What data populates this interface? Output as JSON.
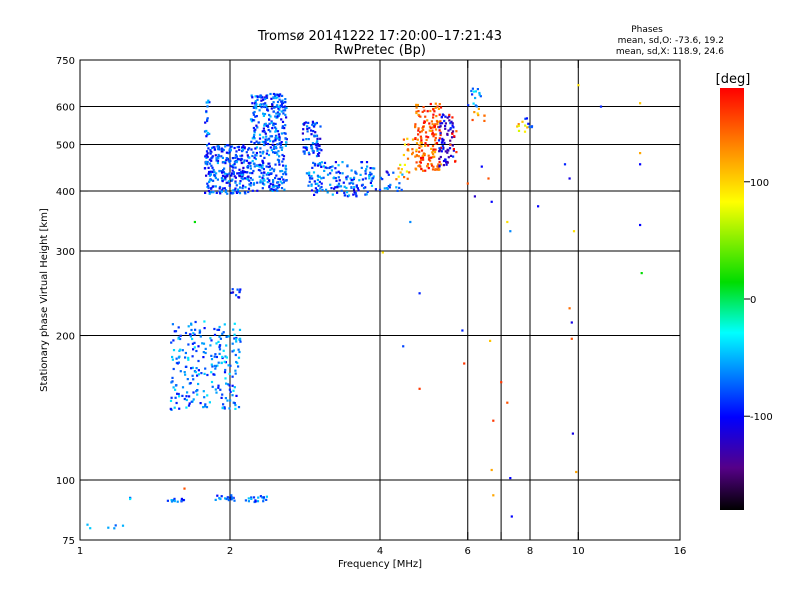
{
  "chart_data": {
    "type": "scatter",
    "title": "Tromsø 20141222 17:20:00–17:21:43",
    "subtitle": "RwPretec (Bp)",
    "xlabel": "Frequency [MHz]",
    "ylabel": "Stationary phase Virtual Height [km]",
    "x_scale": "log2",
    "y_scale": "log",
    "xlim": [
      1,
      16
    ],
    "ylim": [
      75,
      750
    ],
    "x_ticks": [
      1,
      2,
      4,
      6,
      8,
      10,
      16
    ],
    "x_minor_ticks": [
      7
    ],
    "y_ticks": [
      75,
      100,
      200,
      300,
      400,
      500,
      600,
      750
    ],
    "x_gridlines": [
      2,
      4,
      6,
      7,
      8,
      10
    ],
    "y_gridlines": [
      100,
      200,
      300,
      400,
      500,
      600
    ],
    "grid": true,
    "legend_position": "top-right",
    "phase_header": "Phases",
    "phase_stats": [
      "mean, sd,O: -73.6, 19.2",
      "mean, sd,X: 118.9, 24.6"
    ],
    "colorbar": {
      "label": "[deg]",
      "range": [
        -180,
        180
      ],
      "ticks": [
        100,
        0,
        -100
      ],
      "colors": [
        "#ff0000",
        "#ff8800",
        "#ffff00",
        "#00dd00",
        "#00ffff",
        "#0000ff",
        "#550088",
        "#000000"
      ]
    },
    "series": [
      {
        "n": 6,
        "x": [
          1.0,
          1.22
        ],
        "y": [
          79,
          81
        ],
        "phase": -60
      },
      {
        "n": 3,
        "x": [
          1.26,
          1.26
        ],
        "y": [
          91,
          92
        ],
        "phase": -60
      },
      {
        "n": 14,
        "x": [
          1.5,
          1.62
        ],
        "y": [
          90,
          92
        ],
        "phase": -70
      },
      {
        "n": 16,
        "x": [
          1.87,
          2.05
        ],
        "y": [
          90,
          93
        ],
        "phase": -70
      },
      {
        "n": 18,
        "x": [
          2.15,
          2.42
        ],
        "y": [
          90,
          93
        ],
        "phase": -75
      },
      {
        "n": 240,
        "x": [
          1.52,
          2.1
        ],
        "y": [
          140,
          215
        ],
        "phase": -65
      },
      {
        "n": 10,
        "x": [
          2.0,
          2.1
        ],
        "y": [
          240,
          250
        ],
        "phase": -100
      },
      {
        "n": 280,
        "x": [
          1.78,
          2.2
        ],
        "y": [
          395,
          500
        ],
        "phase": -80
      },
      {
        "n": 18,
        "x": [
          1.78,
          1.82
        ],
        "y": [
          500,
          620
        ],
        "phase": -70
      },
      {
        "n": 380,
        "x": [
          2.2,
          2.6
        ],
        "y": [
          400,
          640
        ],
        "phase": -75
      },
      {
        "n": 70,
        "x": [
          2.8,
          3.05
        ],
        "y": [
          470,
          560
        ],
        "phase": -85
      },
      {
        "n": 160,
        "x": [
          2.85,
          3.9
        ],
        "y": [
          390,
          460
        ],
        "phase": -75
      },
      {
        "n": 20,
        "x": [
          3.9,
          4.45
        ],
        "y": [
          400,
          440
        ],
        "phase": -80
      },
      {
        "n": 12,
        "x": [
          4.3,
          4.6
        ],
        "y": [
          420,
          470
        ],
        "phase": 110
      },
      {
        "n": 14,
        "x": [
          4.45,
          4.75
        ],
        "y": [
          470,
          520
        ],
        "phase": 130
      },
      {
        "n": 160,
        "x": [
          4.7,
          5.3
        ],
        "y": [
          440,
          610
        ],
        "phase": 150
      },
      {
        "n": 70,
        "x": [
          5.25,
          5.65
        ],
        "y": [
          450,
          580
        ],
        "phase": -110
      },
      {
        "n": 10,
        "x": [
          5.5,
          5.7
        ],
        "y": [
          450,
          600
        ],
        "phase": 160
      },
      {
        "n": 14,
        "x": [
          6.0,
          6.4
        ],
        "y": [
          600,
          660
        ],
        "phase": -60
      },
      {
        "n": 8,
        "x": [
          6.1,
          6.5
        ],
        "y": [
          560,
          600
        ],
        "phase": 120
      },
      {
        "n": 8,
        "x": [
          7.5,
          7.9
        ],
        "y": [
          530,
          560
        ],
        "phase": 110
      },
      {
        "n": 6,
        "x": [
          7.6,
          8.1
        ],
        "y": [
          540,
          570
        ],
        "phase": -90
      }
    ],
    "points": [
      {
        "x": 1.7,
        "y": 345,
        "phase": 20
      },
      {
        "x": 1.62,
        "y": 96,
        "phase": 150
      },
      {
        "x": 4.05,
        "y": 298,
        "phase": 100
      },
      {
        "x": 4.45,
        "y": 190,
        "phase": -80
      },
      {
        "x": 4.6,
        "y": 345,
        "phase": -60
      },
      {
        "x": 4.8,
        "y": 245,
        "phase": -90
      },
      {
        "x": 4.8,
        "y": 155,
        "phase": 160
      },
      {
        "x": 5.85,
        "y": 205,
        "phase": -90
      },
      {
        "x": 5.9,
        "y": 175,
        "phase": 160
      },
      {
        "x": 6.0,
        "y": 415,
        "phase": 150
      },
      {
        "x": 6.2,
        "y": 390,
        "phase": -120
      },
      {
        "x": 6.4,
        "y": 450,
        "phase": -100
      },
      {
        "x": 6.6,
        "y": 425,
        "phase": 150
      },
      {
        "x": 6.7,
        "y": 380,
        "phase": -100
      },
      {
        "x": 6.65,
        "y": 195,
        "phase": 110
      },
      {
        "x": 6.7,
        "y": 105,
        "phase": 120
      },
      {
        "x": 6.75,
        "y": 93,
        "phase": 120
      },
      {
        "x": 6.75,
        "y": 133,
        "phase": 160
      },
      {
        "x": 7.0,
        "y": 160,
        "phase": 160
      },
      {
        "x": 7.2,
        "y": 145,
        "phase": 150
      },
      {
        "x": 7.3,
        "y": 101,
        "phase": -100
      },
      {
        "x": 7.35,
        "y": 84,
        "phase": -100
      },
      {
        "x": 7.2,
        "y": 345,
        "phase": 100
      },
      {
        "x": 7.3,
        "y": 330,
        "phase": -60
      },
      {
        "x": 8.3,
        "y": 372,
        "phase": -100
      },
      {
        "x": 9.4,
        "y": 455,
        "phase": -90
      },
      {
        "x": 9.6,
        "y": 425,
        "phase": -110
      },
      {
        "x": 9.6,
        "y": 228,
        "phase": 140
      },
      {
        "x": 9.7,
        "y": 213,
        "phase": -110
      },
      {
        "x": 9.7,
        "y": 197,
        "phase": 150
      },
      {
        "x": 9.75,
        "y": 125,
        "phase": -110
      },
      {
        "x": 9.9,
        "y": 104,
        "phase": 120
      },
      {
        "x": 9.8,
        "y": 330,
        "phase": 100
      },
      {
        "x": 10.0,
        "y": 665,
        "phase": 100
      },
      {
        "x": 11.1,
        "y": 600,
        "phase": -90
      },
      {
        "x": 13.3,
        "y": 610,
        "phase": 110
      },
      {
        "x": 13.3,
        "y": 480,
        "phase": 120
      },
      {
        "x": 13.3,
        "y": 455,
        "phase": -100
      },
      {
        "x": 13.3,
        "y": 340,
        "phase": -100
      },
      {
        "x": 13.4,
        "y": 270,
        "phase": 20
      }
    ]
  }
}
